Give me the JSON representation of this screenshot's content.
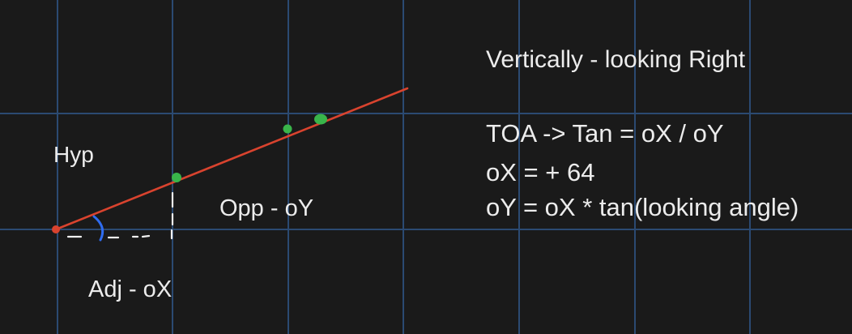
{
  "labels": {
    "hyp": "Hyp",
    "opp": "Opp - oY",
    "adj": "Adj - oX"
  },
  "notes": {
    "title": "Vertically - looking Right",
    "lines": [
      "TOA -> Tan = oX / oY",
      "oX = + 64",
      "oY = oX * tan(looking angle)"
    ]
  },
  "colors": {
    "background": "#1a1a1a",
    "grid": "#2b4a72",
    "ray": "#d9432e",
    "points": "#39b54a",
    "angle_arc": "#2f6cf0",
    "dashes": "#f0f0f0",
    "text": "#ececec"
  }
}
